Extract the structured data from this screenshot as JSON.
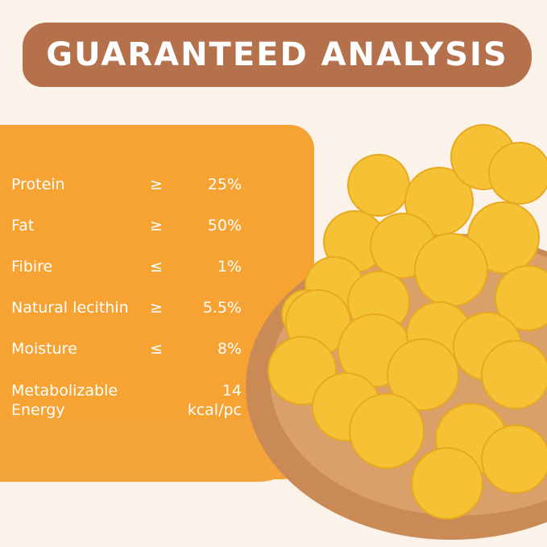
{
  "banner": {
    "title": "GUARANTEED ANALYSIS"
  },
  "analysis": [
    {
      "label": "Protein",
      "operator": "≥",
      "value": "25%"
    },
    {
      "label": "Fat",
      "operator": "≥",
      "value": "50%"
    },
    {
      "label": "Fibire",
      "operator": "≤",
      "value": "1%"
    },
    {
      "label": "Natural lecithin",
      "operator": "≥",
      "value": "5.5%"
    },
    {
      "label": "Moisture",
      "operator": "≤",
      "value": "8%"
    }
  ],
  "energy": {
    "label_line1": "Metabolizable",
    "label_line2": "Energy",
    "value_line1": "14",
    "value_line2": "kcal/pc"
  },
  "colors": {
    "banner": "#b4714b",
    "brush": "#f6a333",
    "background": "#fbf3ea",
    "balls": "#f5c236",
    "bowl": "#c98a55"
  }
}
